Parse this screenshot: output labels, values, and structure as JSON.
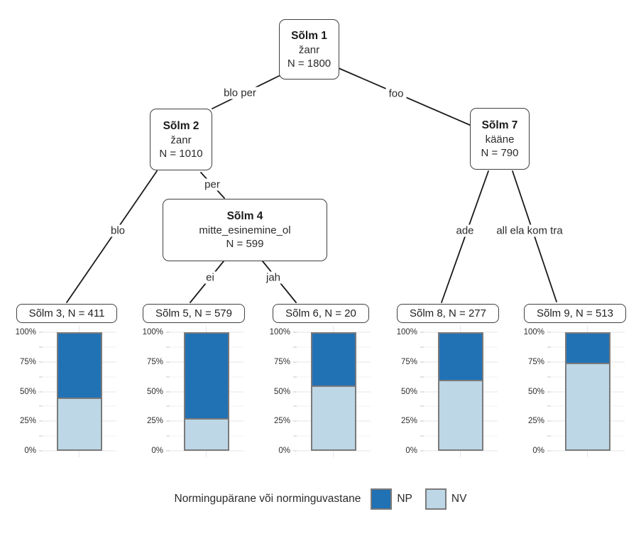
{
  "tree": {
    "nodes": [
      {
        "title": "Sõlm 1",
        "variable": "žanr",
        "n": "N = 1800"
      },
      {
        "title": "Sõlm 2",
        "variable": "žanr",
        "n": "N = 1010"
      },
      {
        "title": "Sõlm 4",
        "variable": "mitte_esinemine_ol",
        "n": "N = 599"
      },
      {
        "title": "Sõlm 7",
        "variable": "kääne",
        "n": "N = 790"
      }
    ],
    "edges": [
      {
        "label": "blo per"
      },
      {
        "label": "foo"
      },
      {
        "label": "blo"
      },
      {
        "label": "per"
      },
      {
        "label": "ei"
      },
      {
        "label": "jah"
      },
      {
        "label": "ade"
      },
      {
        "label": "all ela kom tra"
      }
    ]
  },
  "terminals": [
    {
      "header": "Sõlm 3, N = 411",
      "np": 55,
      "nv": 45
    },
    {
      "header": "Sõlm 5, N = 579",
      "np": 73,
      "nv": 27
    },
    {
      "header": "Sõlm 6, N = 20",
      "np": 45,
      "nv": 55
    },
    {
      "header": "Sõlm 8, N = 277",
      "np": 40,
      "nv": 60
    },
    {
      "header": "Sõlm 9, N = 513",
      "np": 25,
      "nv": 75
    }
  ],
  "axis": {
    "yticks": [
      "100%",
      "75%",
      "50%",
      "25%",
      "0%"
    ]
  },
  "legend": {
    "title": "Normingupärane või norminguvastane",
    "items": [
      {
        "label": "NP",
        "color": "#2171b5"
      },
      {
        "label": "NV",
        "color": "#bdd7e7"
      }
    ]
  },
  "colors": {
    "np": "#2171b5",
    "nv": "#bdd7e7",
    "bar_border": "#7a7a7a",
    "node_border": "#404040",
    "edge_line": "#1a1a1a"
  },
  "chart_data": {
    "type": "bar",
    "stacked": true,
    "orientation": "vertical",
    "categories": [
      "Sõlm 3, N = 411",
      "Sõlm 5, N = 579",
      "Sõlm 6, N = 20",
      "Sõlm 8, N = 277",
      "Sõlm 9, N = 513"
    ],
    "series": [
      {
        "name": "NP",
        "color": "#2171b5",
        "values": [
          55,
          73,
          45,
          40,
          25
        ]
      },
      {
        "name": "NV",
        "color": "#bdd7e7",
        "values": [
          45,
          27,
          55,
          60,
          75
        ]
      }
    ],
    "unit": "%",
    "ylim": [
      0,
      100
    ],
    "yticks": [
      "0%",
      "25%",
      "50%",
      "75%",
      "100%"
    ],
    "grid": "horizontal, minor every 12.5%",
    "legend": {
      "title": "Normingupärane või norminguvastane",
      "position": "bottom"
    },
    "tree": {
      "root": {
        "node": "Sõlm 1",
        "variable": "žanr",
        "n": 1800,
        "children": [
          {
            "edge": "blo per",
            "node": "Sõlm 2",
            "variable": "žanr",
            "n": 1010,
            "children": [
              {
                "edge": "blo",
                "node": "Sõlm 3",
                "n": 411
              },
              {
                "edge": "per",
                "node": "Sõlm 4",
                "variable": "mitte_esinemine_ol",
                "n": 599,
                "children": [
                  {
                    "edge": "ei",
                    "node": "Sõlm 5",
                    "n": 579
                  },
                  {
                    "edge": "jah",
                    "node": "Sõlm 6",
                    "n": 20
                  }
                ]
              }
            ]
          },
          {
            "edge": "foo",
            "node": "Sõlm 7",
            "variable": "kääne",
            "n": 790,
            "children": [
              {
                "edge": "ade",
                "node": "Sõlm 8",
                "n": 277
              },
              {
                "edge": "all ela kom tra",
                "node": "Sõlm 9",
                "n": 513
              }
            ]
          }
        ]
      }
    }
  }
}
